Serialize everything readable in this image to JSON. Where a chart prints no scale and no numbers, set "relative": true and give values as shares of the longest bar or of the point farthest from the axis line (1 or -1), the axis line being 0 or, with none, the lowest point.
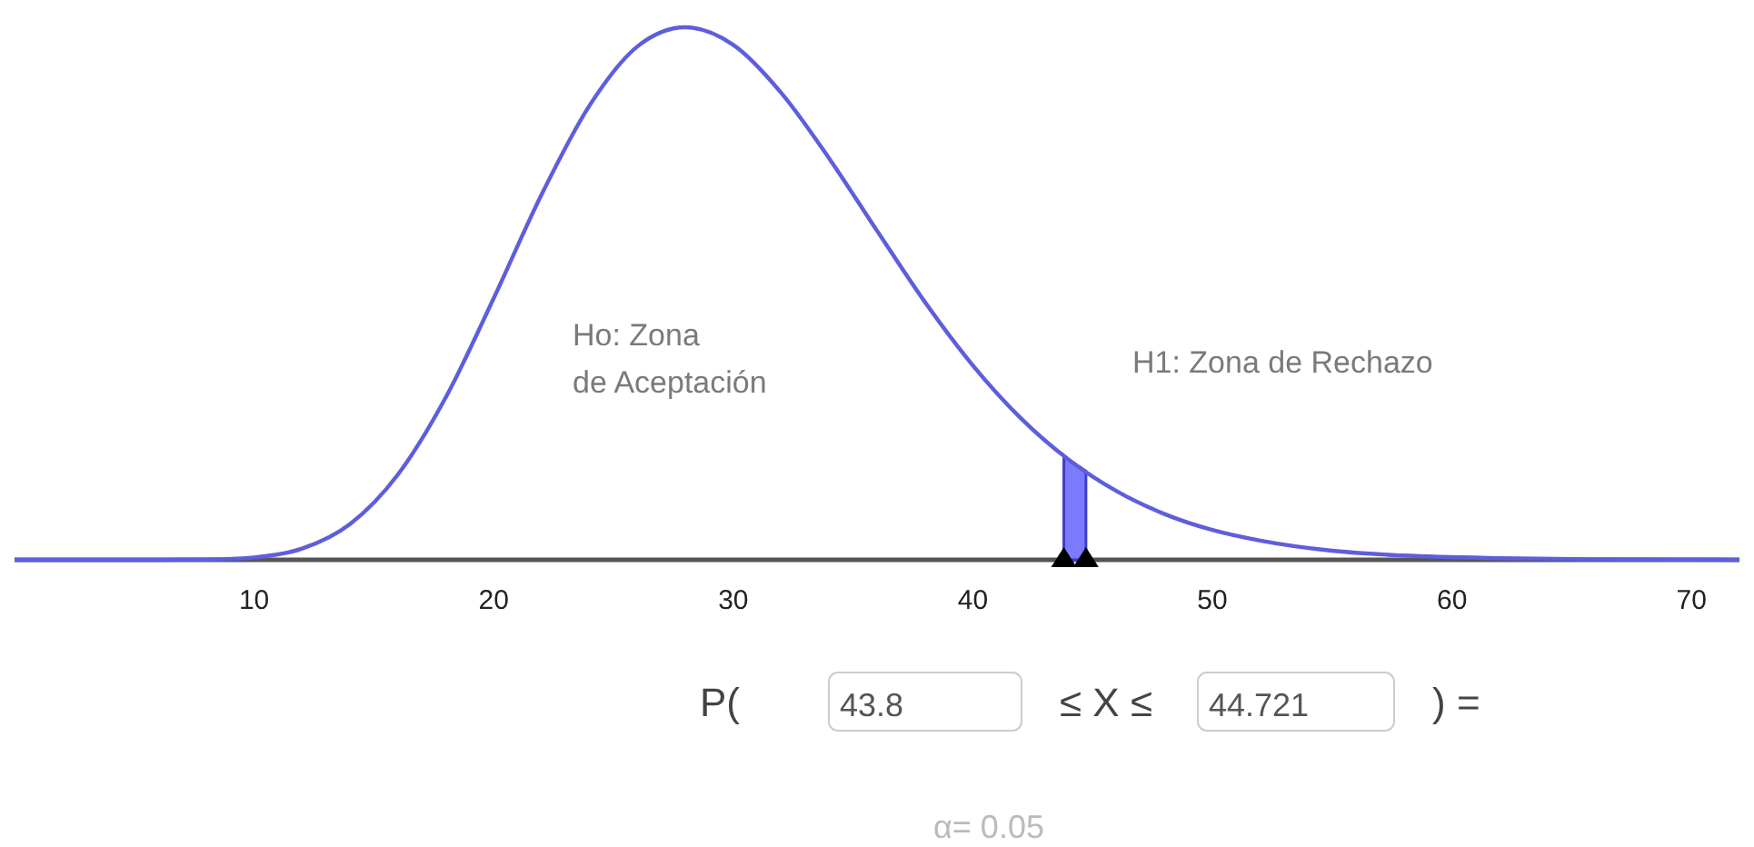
{
  "chart_data": {
    "type": "line",
    "relative": true,
    "x": [
      0,
      4,
      6,
      8,
      10,
      12,
      14,
      16,
      18,
      20,
      22,
      24,
      26,
      28,
      30,
      32,
      34,
      36,
      38,
      40,
      42,
      44,
      46,
      48,
      50,
      52,
      55,
      58,
      62,
      66,
      70,
      72
    ],
    "series": [
      {
        "color": "#5e5edc",
        "values": [
          0,
          0,
          0,
          0.0005,
          0.0045,
          0.021,
          0.067,
          0.16,
          0.305,
          0.491,
          0.686,
          0.853,
          0.964,
          1,
          0.967,
          0.877,
          0.754,
          0.618,
          0.484,
          0.365,
          0.266,
          0.188,
          0.129,
          0.086,
          0.056,
          0.036,
          0.017,
          0.008,
          0.003,
          0.001,
          0.0003,
          0.0001
        ]
      }
    ],
    "xlim": [
      0,
      72
    ],
    "xticks": [
      10,
      20,
      30,
      40,
      50,
      60,
      70
    ],
    "bands": [
      {
        "axis": "x",
        "from": 43.8,
        "to": 44.721,
        "color": "#7b7bff"
      }
    ],
    "grid": false,
    "annotations": [
      "Ho: Zona\nde Aceptación",
      "H1: Zona de Rechazo",
      "P(",
      "43.8",
      "≤ X ≤",
      "44.721",
      ") =",
      "α= 0.05"
    ]
  }
}
